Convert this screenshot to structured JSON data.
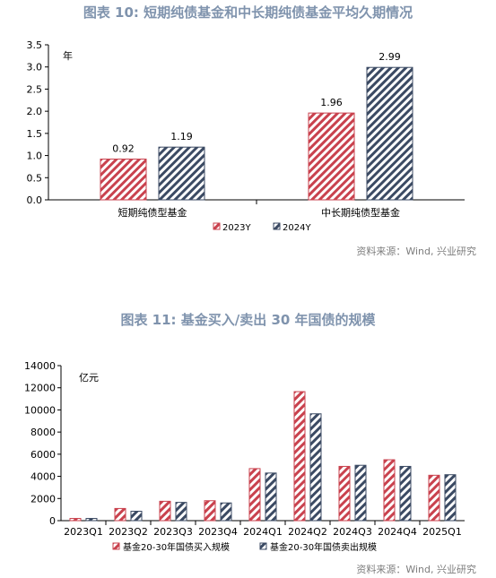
{
  "figure1": {
    "title": "图表 10: 短期纯债基金和中长期纯债基金平均久期情况",
    "source": "资料来源：Wind, 兴业研究",
    "unit": "年"
  },
  "figure2": {
    "title": "图表 11: 基金买入/卖出 30 年国债的规模",
    "source": "资料来源：Wind, 兴业研究",
    "unit": "亿元"
  },
  "colors": {
    "red": "#c9424e",
    "navy": "#3b4a63"
  },
  "chart_data": [
    {
      "type": "bar",
      "title": "图表 10: 短期纯债基金和中长期纯债基金平均久期情况",
      "ylabel": "年",
      "ylim": [
        0,
        3.5
      ],
      "yticks": [
        "0.0",
        "0.5",
        "1.0",
        "1.5",
        "2.0",
        "2.5",
        "3.0",
        "3.5"
      ],
      "categories": [
        "短期纯债型基金",
        "中长期纯债型基金"
      ],
      "series": [
        {
          "name": "2023Y",
          "values": [
            0.92,
            1.96
          ],
          "labels": [
            "0.92",
            "1.96"
          ]
        },
        {
          "name": "2024Y",
          "values": [
            1.19,
            2.99
          ],
          "labels": [
            "1.19",
            "2.99"
          ]
        }
      ],
      "legend": "bottom",
      "grid": false
    },
    {
      "type": "bar",
      "title": "图表 11: 基金买入/卖出 30 年国债的规模",
      "ylabel": "亿元",
      "ylim": [
        0,
        14000
      ],
      "yticks": [
        "0",
        "2000",
        "4000",
        "6000",
        "8000",
        "10000",
        "12000",
        "14000"
      ],
      "categories": [
        "2023Q1",
        "2023Q2",
        "2023Q3",
        "2023Q4",
        "2024Q1",
        "2024Q2",
        "2024Q3",
        "2024Q4",
        "2025Q1"
      ],
      "series": [
        {
          "name": "基金20-30年国债买入规模",
          "values": [
            200,
            1100,
            1750,
            1800,
            4700,
            11650,
            4900,
            5500,
            4100
          ]
        },
        {
          "name": "基金20-30年国债卖出规模",
          "values": [
            200,
            850,
            1650,
            1600,
            4300,
            9650,
            5000,
            4900,
            4150
          ]
        }
      ],
      "legend": "bottom",
      "grid": false
    }
  ]
}
